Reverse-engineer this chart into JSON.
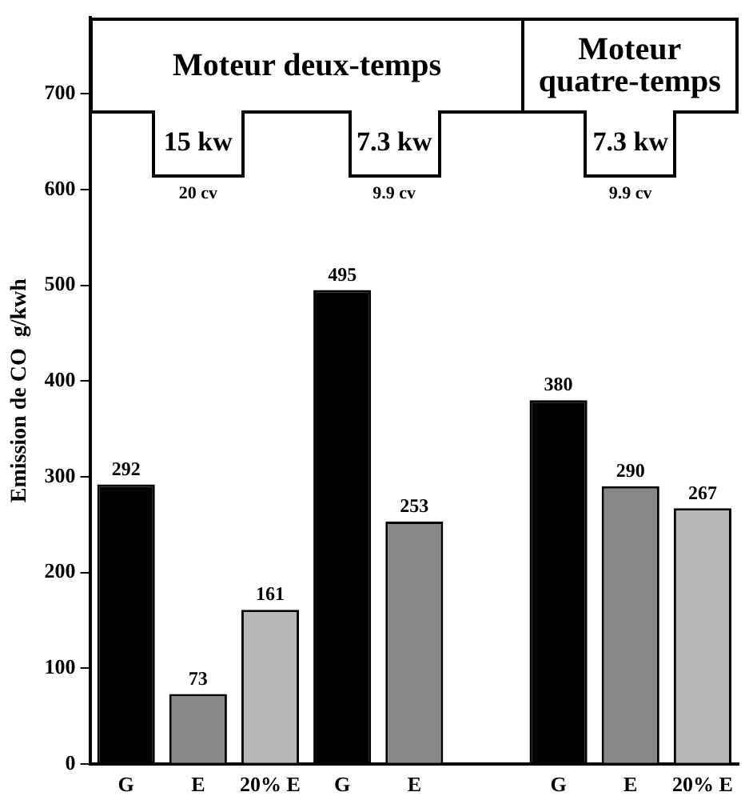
{
  "chart_data": {
    "type": "bar",
    "ylabel": "Emission de CO  g/kwh",
    "categories": [
      "G",
      "E",
      "20% E",
      "G",
      "E",
      null,
      "G",
      "E",
      "20% E"
    ],
    "values": [
      292,
      73,
      161,
      495,
      253,
      null,
      380,
      290,
      267
    ],
    "colors": [
      "#000000",
      "#888888",
      "#b8b8b8",
      "#000000",
      "#888888",
      "#ffffff",
      "#000000",
      "#888888",
      "#b8b8b8"
    ],
    "ylim": [
      0,
      780
    ],
    "yticks": [
      0,
      100,
      200,
      300,
      400,
      500,
      600,
      700
    ],
    "grid": false,
    "legend": false,
    "data_labels": true,
    "annotations": [
      "Moteur  deux-temps",
      "Moteur quatre-temps",
      "15 kw",
      "20 cv",
      "7.3 kw",
      "9.9 cv",
      "7.3 kw",
      "9.9 cv"
    ]
  }
}
